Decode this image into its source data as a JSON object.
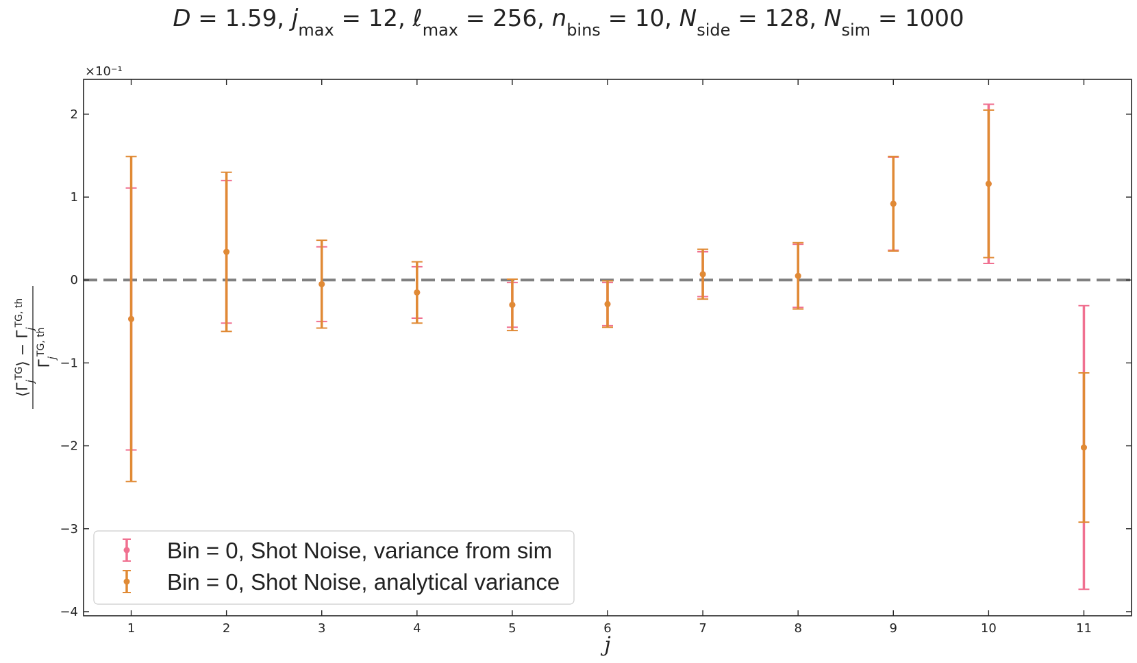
{
  "chart_data": {
    "type": "scatter",
    "title": {
      "parts": [
        {
          "t": "D",
          "i": true
        },
        {
          "t": " = 1.59,  "
        },
        {
          "t": "j",
          "i": true
        },
        {
          "t": "max",
          "sub": true
        },
        {
          "t": " = 12,  "
        },
        {
          "t": "ℓ",
          "i": true
        },
        {
          "t": "max",
          "sub": true
        },
        {
          "t": " = 256,  "
        },
        {
          "t": "n",
          "i": true
        },
        {
          "t": "bins",
          "sub": true
        },
        {
          "t": " = 10,  "
        },
        {
          "t": "N",
          "i": true
        },
        {
          "t": "side",
          "sub": true
        },
        {
          "t": " = 128, "
        },
        {
          "t": "N",
          "i": true
        },
        {
          "t": "sim",
          "sub": true
        },
        {
          "t": " = 1000"
        }
      ]
    },
    "xlabel": "j",
    "ylabel": "(⟨Γ_j^TG⟩ − Γ_j^TG,th) / Γ_j^TG,th",
    "ylabel_parts": {
      "numerator": [
        {
          "t": "⟨Γ"
        },
        {
          "t": "j",
          "i": true,
          "sub": true
        },
        {
          "t": "TG",
          "sup": true
        },
        {
          "t": "⟩ − Γ"
        },
        {
          "t": "j",
          "i": true,
          "sub": true
        },
        {
          "t": "TG, th",
          "sup": true
        }
      ],
      "denominator": [
        {
          "t": "Γ"
        },
        {
          "t": "j",
          "i": true,
          "sub": true
        },
        {
          "t": "TG, th",
          "sup": true
        }
      ]
    },
    "y_multiplier": "×10⁻¹",
    "xlim": [
      0.5,
      11.5
    ],
    "ylim": [
      -4.05,
      2.42
    ],
    "xticks": [
      1,
      2,
      3,
      4,
      5,
      6,
      7,
      8,
      9,
      10,
      11
    ],
    "yticks": [
      -4,
      -3,
      -2,
      -1,
      0,
      1,
      2
    ],
    "ytick_labels": [
      "−4",
      "−3",
      "−2",
      "−1",
      "0",
      "1",
      "2"
    ],
    "reference_line": {
      "y": 0,
      "style": "dashed",
      "color": "#808080"
    },
    "legend_position": "lower-left",
    "series": [
      {
        "name": "Bin = 0, Shot Noise, variance from sim",
        "color": "#f07090",
        "x": [
          1,
          2,
          3,
          4,
          5,
          6,
          7,
          8,
          9,
          10,
          11
        ],
        "y": [
          -0.47,
          0.34,
          -0.05,
          -0.15,
          -0.3,
          -0.29,
          0.07,
          0.05,
          0.92,
          1.16,
          -2.02
        ],
        "yerr": [
          1.58,
          0.86,
          0.45,
          0.31,
          0.27,
          0.26,
          0.27,
          0.38,
          0.56,
          0.96,
          1.71
        ]
      },
      {
        "name": "Bin = 0, Shot Noise, analytical variance",
        "color": "#e08a35",
        "x": [
          1,
          2,
          3,
          4,
          5,
          6,
          7,
          8,
          9,
          10,
          11
        ],
        "y": [
          -0.47,
          0.34,
          -0.05,
          -0.15,
          -0.3,
          -0.29,
          0.07,
          0.05,
          0.92,
          1.16,
          -2.02
        ],
        "yerr": [
          1.96,
          0.96,
          0.53,
          0.37,
          0.31,
          0.28,
          0.3,
          0.4,
          0.57,
          0.89,
          0.9
        ]
      }
    ]
  }
}
